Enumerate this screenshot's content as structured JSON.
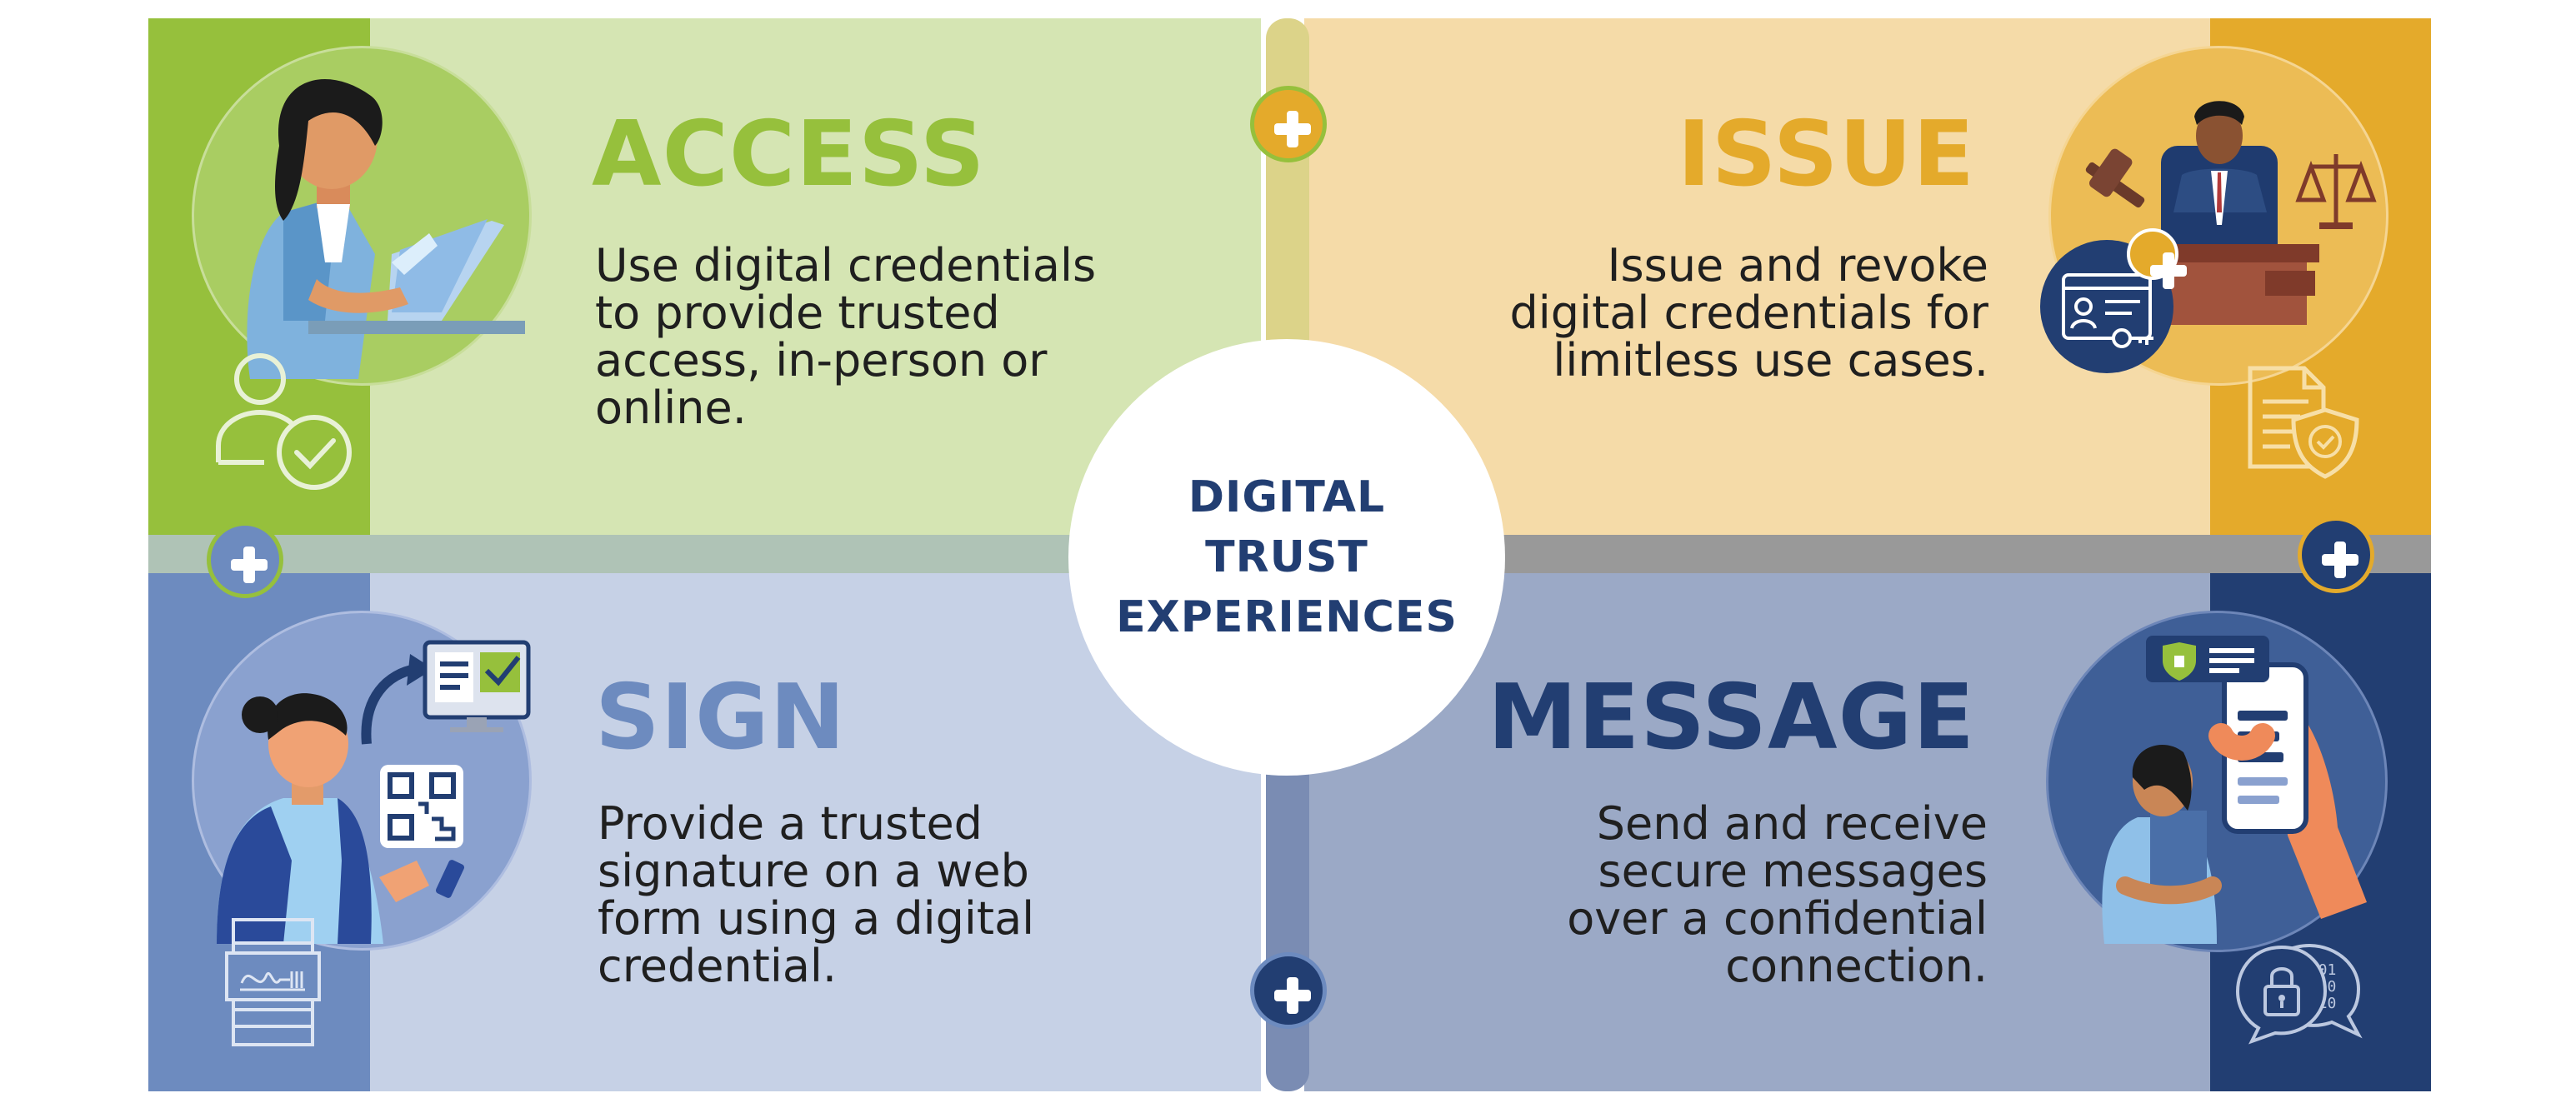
{
  "center": {
    "lines": [
      "DIGITAL",
      "TRUST",
      "EXPERIENCES"
    ]
  },
  "quadrants": {
    "access": {
      "title": "ACCESS",
      "lines": [
        "Use digital credentials",
        "to provide trusted",
        "access, in-person or",
        "online."
      ]
    },
    "issue": {
      "title": "ISSUE",
      "lines": [
        "Issue and revoke",
        "digital credentials for",
        "limitless use cases."
      ]
    },
    "sign": {
      "title": "SIGN",
      "lines": [
        "Provide a trusted",
        "signature on a web",
        "form using a digital",
        "credential."
      ]
    },
    "message": {
      "title": "MESSAGE",
      "lines": [
        "Send and receive",
        "secure messages",
        "over a confidential",
        "connection."
      ]
    }
  },
  "colors": {
    "green": "#96c03c",
    "green_light": "#d5e5b3",
    "gold": "#e4aa2b",
    "gold_light": "#f5dba8",
    "blue": "#6d8bbf",
    "blue_light": "#c6d1e6",
    "navy": "#223e72",
    "navy_light": "#9ba9c6"
  },
  "icons": [
    "woman-laptop-illustration",
    "person-check-icon",
    "judge-illustration",
    "id-card-key-icon",
    "document-shield-icon",
    "woman-phone-qr-illustration",
    "signature-document-icon",
    "woman-phone-message-illustration",
    "lock-chat-icon",
    "plus-icon"
  ]
}
